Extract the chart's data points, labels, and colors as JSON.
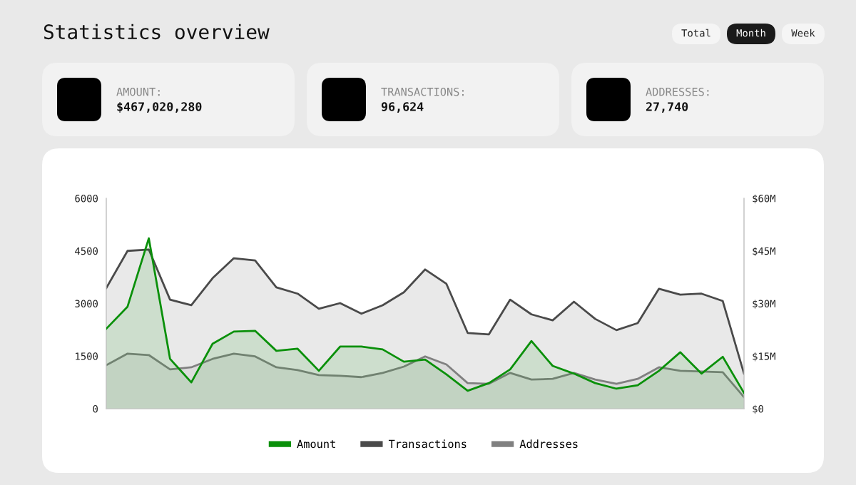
{
  "chart_data": {
    "type": "area",
    "title": "Statistics overview",
    "categories": [
      null,
      null,
      null,
      null,
      null,
      null,
      null,
      null,
      null,
      null,
      null,
      null,
      null,
      null,
      null,
      null,
      null,
      null,
      null,
      null,
      null,
      null,
      null,
      null,
      null,
      null,
      null,
      null,
      null,
      null,
      null
    ],
    "series": [
      {
        "name": "Amount",
        "color": "#0a900a",
        "axis": "y2",
        "values": [
          22.8,
          29.1,
          48.6,
          14.2,
          7.5,
          18.5,
          22.0,
          22.2,
          16.5,
          17.1,
          10.8,
          17.7,
          17.7,
          16.9,
          13.4,
          14.0,
          9.8,
          5.1,
          7.3,
          11.2,
          19.3,
          12.2,
          10.0,
          7.3,
          5.7,
          6.7,
          10.8,
          16.1,
          10.0,
          14.8,
          4.5
        ]
      },
      {
        "name": "Transactions",
        "color": "#4a4a4a",
        "values": [
          3440,
          4500,
          4540,
          3110,
          2950,
          3720,
          4290,
          4230,
          3460,
          3280,
          2850,
          3010,
          2710,
          2950,
          3320,
          3970,
          3560,
          2160,
          2120,
          3110,
          2690,
          2520,
          3050,
          2560,
          2240,
          2440,
          3420,
          3250,
          3280,
          3070,
          1000
        ]
      },
      {
        "name": "Addresses",
        "color": "#808080",
        "values": [
          1240,
          1570,
          1530,
          1120,
          1180,
          1420,
          1570,
          1490,
          1180,
          1100,
          960,
          940,
          900,
          1020,
          1200,
          1490,
          1260,
          730,
          710,
          1020,
          830,
          850,
          1020,
          830,
          710,
          850,
          1180,
          1080,
          1060,
          1040,
          330
        ]
      }
    ],
    "ylim": [
      0,
      6000
    ],
    "yticks": [
      0,
      1500,
      3000,
      4500,
      6000
    ],
    "y2lim": [
      0,
      60
    ],
    "y2ticks": [
      {
        "value": 0,
        "label": "$0"
      },
      {
        "value": 15,
        "label": "$15M"
      },
      {
        "value": 30,
        "label": "$30M"
      },
      {
        "value": 45,
        "label": "$45M"
      },
      {
        "value": 60,
        "label": "$60M"
      }
    ],
    "legend": "bottom",
    "grid": false,
    "annotations": [
      "Total",
      "Month",
      "Week",
      "AMOUNT:",
      "$467,020,280",
      "TRANSACTIONS:",
      "96,624",
      "ADDRESSES:",
      "27,740"
    ]
  }
}
